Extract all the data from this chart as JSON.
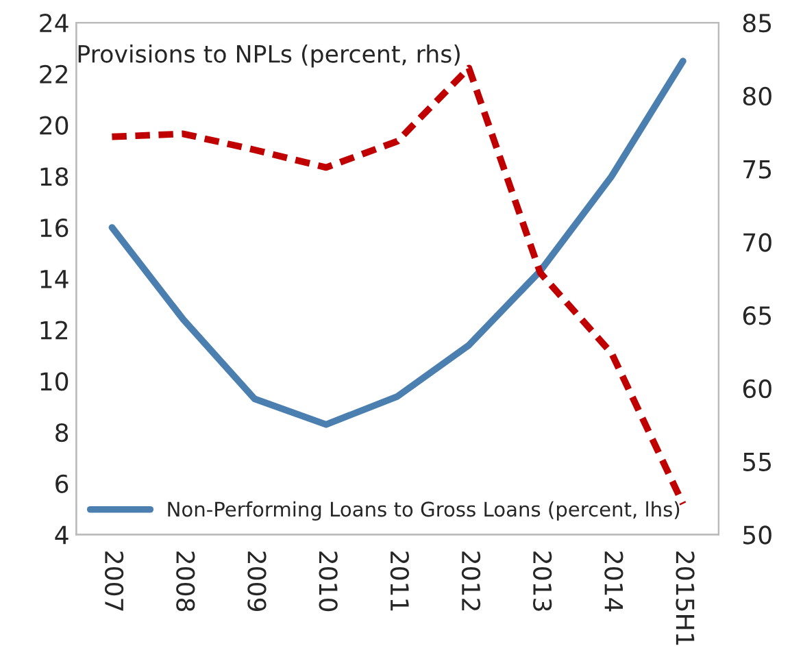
{
  "chart_data": {
    "type": "line",
    "categories": [
      "2007",
      "2008",
      "2009",
      "2010",
      "2011",
      "2012",
      "2013",
      "2014",
      "2015H1"
    ],
    "series": [
      {
        "name": "Non-Performing Loans to Gross Loans (percent, lhs)",
        "color": "#4a7fb0",
        "line_style": "solid",
        "values": [
          16.0,
          12.4,
          9.3,
          8.3,
          9.4,
          11.4,
          14.3,
          18.0,
          22.5
        ]
      },
      {
        "name": "Provisions to NPLs (percent, rhs)",
        "color": "#c00000",
        "line_style": "dashed",
        "axis": "y2",
        "values": [
          77.2,
          77.4,
          76.3,
          75.1,
          76.9,
          81.9,
          67.9,
          62.4,
          52.1
        ]
      }
    ],
    "ylim": [
      4,
      24
    ],
    "yticks": [
      4,
      6,
      8,
      10,
      12,
      14,
      16,
      18,
      20,
      22,
      24
    ],
    "y2lim": [
      50,
      85
    ],
    "y2ticks": [
      50,
      55,
      60,
      65,
      70,
      75,
      80,
      85
    ],
    "legend": "bottom left",
    "grid": false,
    "marker": "none"
  }
}
